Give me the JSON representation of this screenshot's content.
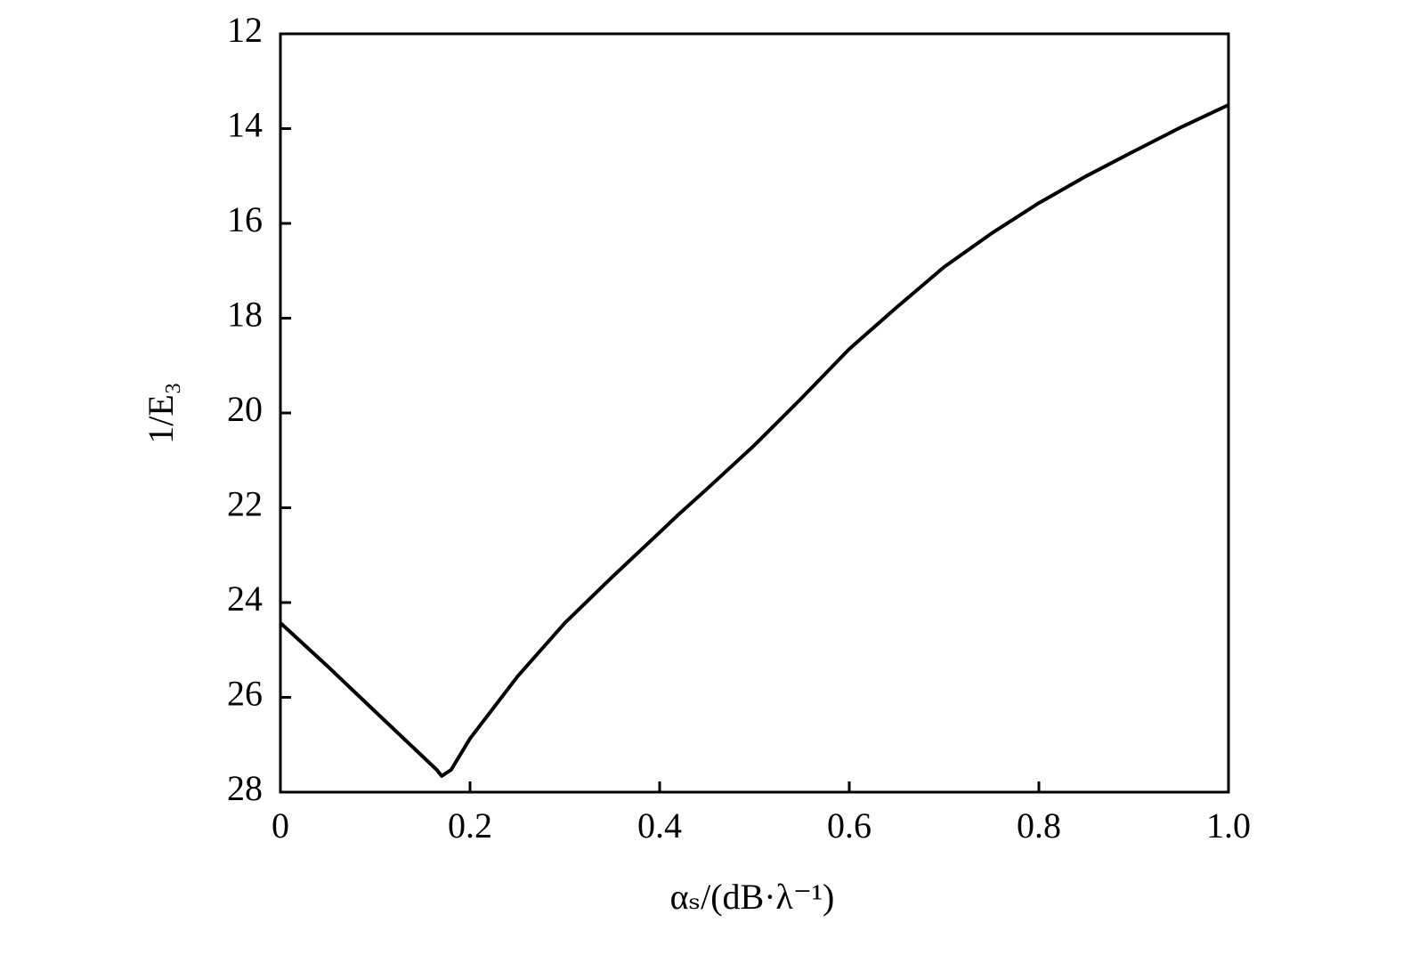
{
  "chart_data": {
    "type": "line",
    "x_label": "αₛ/(dB·λ⁻¹)",
    "y_label": "1/E₃",
    "x": [
      0,
      0.05,
      0.1,
      0.165,
      0.17,
      0.18,
      0.2,
      0.25,
      0.3,
      0.35,
      0.4,
      0.42,
      0.45,
      0.5,
      0.55,
      0.6,
      0.65,
      0.7,
      0.75,
      0.8,
      0.85,
      0.9,
      0.95,
      1.0
    ],
    "series": [
      {
        "color": "#000000",
        "values": [
          24.43,
          25.35,
          26.3,
          27.53,
          27.66,
          27.53,
          26.87,
          25.56,
          24.43,
          23.46,
          22.52,
          22.14,
          21.6,
          20.68,
          19.68,
          18.65,
          17.77,
          16.92,
          16.21,
          15.57,
          15.0,
          14.48,
          13.97,
          13.5
        ]
      }
    ],
    "xlim": [
      0,
      1
    ],
    "xticks": [
      0,
      0.2,
      0.4,
      0.6,
      0.8,
      {
        "value": 1,
        "label": "1.0"
      }
    ],
    "ylim": [
      28,
      12
    ],
    "yticks": [
      12,
      14,
      16,
      18,
      20,
      22,
      24,
      26,
      28
    ]
  }
}
